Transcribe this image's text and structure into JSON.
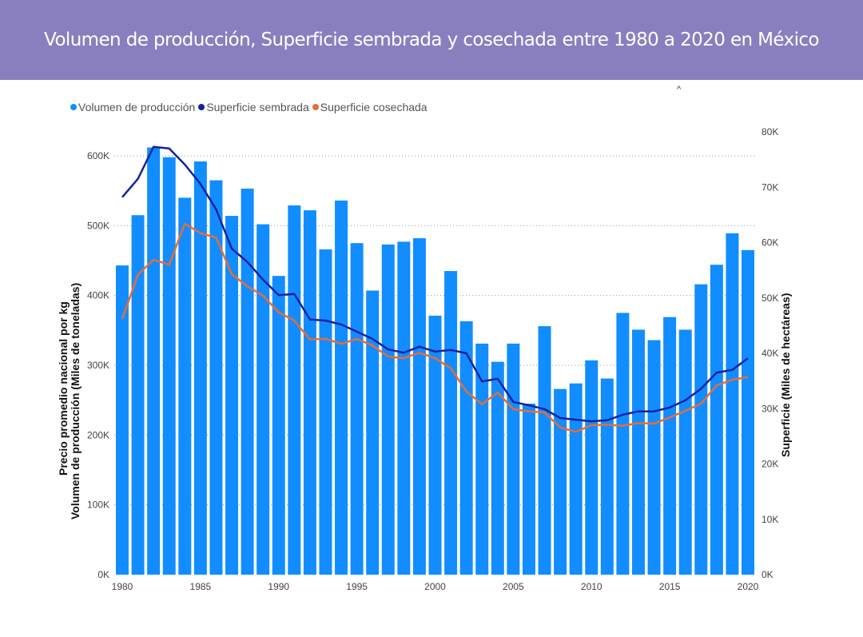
{
  "header": {
    "title": "Volumen de producción, Superficie sembrada y cosechada entre 1980 a 2020 en México",
    "caret": "^"
  },
  "chart_data": {
    "type": "bar",
    "title": "Volumen de producción, Superficie sembrada y cosechada entre 1980 a 2020 en México",
    "legend_position": "top-left",
    "ylabel_left": "Volumen de producción (Miles de toneladas)",
    "ylabel_left_overlap": "Precio promedio nacional por kg",
    "ylabel_right": "Superficie (Miles de hectáreas)",
    "ylim_left": [
      0,
      600000
    ],
    "ylim_right": [
      0,
      80000
    ],
    "left_ticks": [
      "0K",
      "100K",
      "200K",
      "300K",
      "400K",
      "500K",
      "600K"
    ],
    "right_ticks": [
      "0K",
      "10K",
      "20K",
      "30K",
      "40K",
      "50K",
      "60K",
      "70K",
      "80K"
    ],
    "x_ticks": [
      "1980",
      "1985",
      "1990",
      "1995",
      "2000",
      "2005",
      "2010",
      "2015",
      "2020"
    ],
    "x": [
      1980,
      1981,
      1982,
      1983,
      1984,
      1985,
      1986,
      1987,
      1988,
      1989,
      1990,
      1991,
      1992,
      1993,
      1994,
      1995,
      1996,
      1997,
      1998,
      1999,
      2000,
      2001,
      2002,
      2003,
      2004,
      2005,
      2006,
      2007,
      2008,
      2009,
      2010,
      2011,
      2012,
      2013,
      2014,
      2015,
      2016,
      2017,
      2018,
      2019,
      2020
    ],
    "series": [
      {
        "name": "Volumen de producción",
        "type": "bar",
        "axis": "left",
        "color": "#118dff",
        "values": [
          443000,
          515000,
          612000,
          598000,
          540000,
          592000,
          565000,
          514000,
          553000,
          502000,
          428000,
          529000,
          522000,
          466000,
          536000,
          475000,
          407000,
          473000,
          477000,
          482000,
          371000,
          435000,
          363000,
          331000,
          305000,
          331000,
          245000,
          356000,
          266000,
          274000,
          307000,
          281000,
          375000,
          351000,
          336000,
          369000,
          351000,
          416000,
          444000,
          489000,
          465000
        ]
      },
      {
        "name": "Superficie sembrada",
        "type": "line",
        "axis": "right",
        "color": "#12239e",
        "values": [
          68200,
          71500,
          77300,
          77000,
          74100,
          70600,
          66000,
          58900,
          56500,
          53300,
          50500,
          50700,
          46100,
          45900,
          45200,
          43900,
          42600,
          40700,
          40100,
          41200,
          40300,
          40600,
          40000,
          34900,
          35400,
          31200,
          30600,
          29900,
          28300,
          28000,
          27700,
          27900,
          28900,
          29500,
          29500,
          30200,
          31500,
          33600,
          36500,
          37000,
          39100
        ]
      },
      {
        "name": "Superficie cosechada",
        "type": "line",
        "axis": "right",
        "color": "#e66c37",
        "values": [
          46200,
          54200,
          56900,
          56000,
          63400,
          61700,
          60900,
          54300,
          52100,
          50400,
          47400,
          45900,
          42500,
          42600,
          41700,
          42600,
          41400,
          39400,
          39100,
          40100,
          39100,
          37300,
          33100,
          30800,
          32900,
          29900,
          29500,
          29300,
          26600,
          25800,
          27000,
          27100,
          26900,
          27400,
          27300,
          28400,
          29600,
          30900,
          34200,
          35200,
          35700
        ]
      }
    ]
  }
}
